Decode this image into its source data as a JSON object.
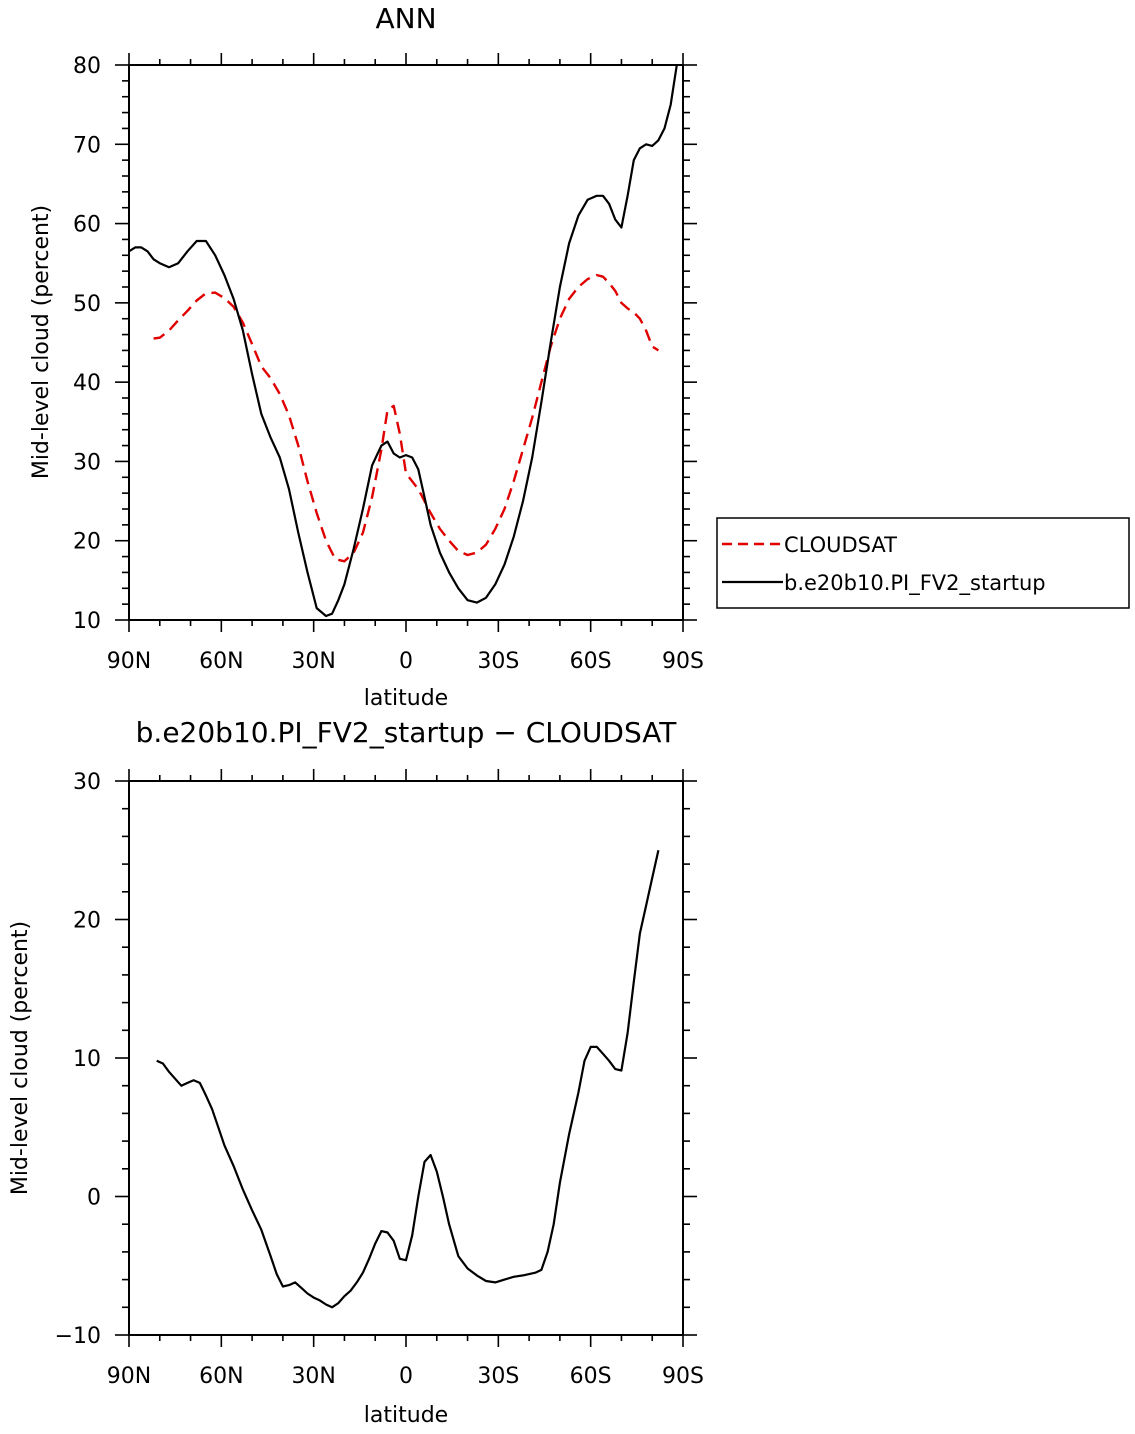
{
  "chart_data": [
    {
      "type": "line",
      "title": "ANN",
      "xlabel": "latitude",
      "ylabel": "Mid-level cloud (percent)",
      "xlim": [
        90,
        -90
      ],
      "ylim": [
        10,
        80
      ],
      "x_ticks": [
        90,
        60,
        30,
        0,
        -30,
        -60,
        -90
      ],
      "x_tick_labels": [
        "90N",
        "60N",
        "30N",
        "0",
        "30S",
        "60S",
        "90S"
      ],
      "y_ticks": [
        10,
        20,
        30,
        40,
        50,
        60,
        70,
        80
      ],
      "y_tick_labels": [
        "10",
        "20",
        "30",
        "40",
        "50",
        "60",
        "70",
        "80"
      ],
      "legend_position": "right",
      "series": [
        {
          "name": "CLOUDSAT",
          "color": "#e00000",
          "dash": "dashed",
          "x": [
            82,
            80,
            77,
            74,
            71,
            68,
            65,
            62,
            59,
            56,
            53,
            50,
            47,
            44,
            41,
            38,
            35,
            32,
            29,
            26,
            23,
            20,
            17,
            14,
            11,
            8,
            6,
            4,
            2,
            0,
            -2,
            -4,
            -6,
            -8,
            -11,
            -14,
            -17,
            -20,
            -23,
            -26,
            -29,
            -32,
            -35,
            -38,
            -41,
            -44,
            -47,
            -50,
            -53,
            -56,
            -59,
            -62,
            -64,
            -66,
            -68,
            -70,
            -72,
            -74,
            -76,
            -78,
            -80,
            -82
          ],
          "y": [
            45.5,
            45.6,
            46.5,
            47.8,
            49,
            50.3,
            51.2,
            51.3,
            50.6,
            49.5,
            47.5,
            44.8,
            42,
            40.5,
            38.5,
            35.8,
            32,
            27.5,
            23.5,
            20,
            17.7,
            17.4,
            18.5,
            21,
            25.5,
            31.5,
            36.5,
            37,
            33.5,
            28.5,
            27.5,
            26.5,
            25,
            23.5,
            21.5,
            20,
            18.7,
            18.2,
            18.5,
            19.5,
            21.5,
            24,
            27.5,
            31.5,
            35.5,
            40,
            44.5,
            48,
            50.5,
            52,
            53,
            53.5,
            53.3,
            52.5,
            51.5,
            50,
            49.3,
            48.8,
            48,
            46.5,
            44.5,
            44
          ]
        },
        {
          "name": "b.e20b10.PI_FV2_startup",
          "color": "#000000",
          "dash": "solid",
          "x": [
            90,
            88,
            86,
            84,
            82,
            80,
            77,
            74,
            71,
            68,
            65,
            62,
            59,
            56,
            53,
            50,
            47,
            44,
            41,
            38,
            35,
            32,
            29,
            26,
            24,
            22,
            20,
            17,
            14,
            11,
            8,
            6,
            4,
            2,
            0,
            -2,
            -4,
            -6,
            -8,
            -11,
            -14,
            -17,
            -20,
            -23,
            -26,
            -29,
            -32,
            -35,
            -38,
            -41,
            -44,
            -47,
            -50,
            -53,
            -56,
            -59,
            -62,
            -64,
            -66,
            -68,
            -70,
            -72,
            -74,
            -76,
            -78,
            -80,
            -82,
            -84,
            -86,
            -88
          ],
          "y": [
            56.5,
            57,
            57,
            56.5,
            55.5,
            55,
            54.5,
            55,
            56.5,
            57.8,
            57.8,
            56,
            53.5,
            50.5,
            46.5,
            41,
            36,
            33,
            30.5,
            26.5,
            21,
            16,
            11.5,
            10.5,
            10.8,
            12.5,
            14.5,
            19,
            24,
            29.5,
            32,
            32.5,
            31,
            30.5,
            30.8,
            30.5,
            29,
            25.5,
            22,
            18.5,
            16,
            14,
            12.5,
            12.2,
            12.8,
            14.5,
            17,
            20.5,
            25,
            30.5,
            37.5,
            45,
            52,
            57.5,
            61,
            63,
            63.5,
            63.5,
            62.5,
            60.5,
            59.5,
            63.5,
            68,
            69.5,
            70,
            69.8,
            70.5,
            72,
            75,
            80
          ]
        }
      ]
    },
    {
      "type": "line",
      "title": "b.e20b10.PI_FV2_startup − CLOUDSAT",
      "xlabel": "latitude",
      "ylabel": "Mid-level cloud (percent)",
      "xlim": [
        90,
        -90
      ],
      "ylim": [
        -10,
        30
      ],
      "x_ticks": [
        90,
        60,
        30,
        0,
        -30,
        -60,
        -90
      ],
      "x_tick_labels": [
        "90N",
        "60N",
        "30N",
        "0",
        "30S",
        "60S",
        "90S"
      ],
      "y_ticks": [
        -10,
        0,
        10,
        20,
        30
      ],
      "y_tick_labels": [
        "−10",
        "0",
        "10",
        "20",
        "30"
      ],
      "series": [
        {
          "color": "#000000",
          "dash": "solid",
          "x": [
            81,
            79,
            77,
            75,
            73,
            71,
            69,
            67,
            65,
            63,
            61,
            59,
            56,
            53,
            50,
            47,
            44,
            42,
            40,
            38,
            36,
            34,
            32,
            30,
            28,
            26,
            24,
            22,
            20,
            18,
            16,
            14,
            12,
            10,
            8,
            6,
            4,
            2,
            0,
            -2,
            -4,
            -6,
            -8,
            -10,
            -12,
            -14,
            -17,
            -20,
            -23,
            -26,
            -29,
            -32,
            -35,
            -38,
            -40,
            -42,
            -44,
            -46,
            -48,
            -50,
            -53,
            -56,
            -58,
            -60,
            -62,
            -64,
            -66,
            -68,
            -70,
            -72,
            -74,
            -76,
            -78,
            -80,
            -82
          ],
          "y": [
            9.8,
            9.6,
            9,
            8.5,
            8,
            8.2,
            8.4,
            8.2,
            7.3,
            6.3,
            5,
            3.7,
            2.2,
            0.5,
            -1,
            -2.4,
            -4.3,
            -5.6,
            -6.5,
            -6.4,
            -6.2,
            -6.6,
            -7,
            -7.3,
            -7.5,
            -7.8,
            -8,
            -7.7,
            -7.2,
            -6.8,
            -6.2,
            -5.5,
            -4.5,
            -3.4,
            -2.5,
            -2.6,
            -3.2,
            -4.5,
            -4.6,
            -2.8,
            0,
            2.5,
            3,
            1.8,
            0,
            -2,
            -4.3,
            -5.2,
            -5.7,
            -6.1,
            -6.2,
            -6,
            -5.8,
            -5.7,
            -5.6,
            -5.5,
            -5.3,
            -4,
            -2,
            1,
            4.5,
            7.5,
            9.8,
            10.8,
            10.8,
            10.3,
            9.8,
            9.2,
            9.1,
            11.8,
            15.5,
            19,
            21,
            23,
            25
          ]
        }
      ]
    }
  ]
}
